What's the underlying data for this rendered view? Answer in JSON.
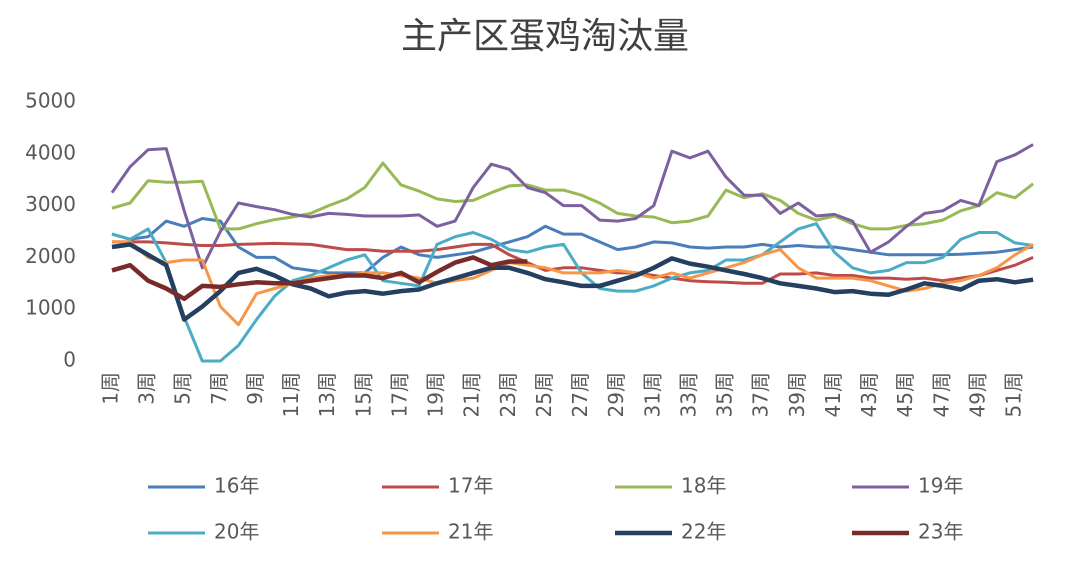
{
  "chart_data": {
    "type": "line",
    "title": "主产区蛋鸡淘汰量",
    "categories": [
      "1周",
      null,
      "3周",
      null,
      "5周",
      null,
      "7周",
      null,
      "9周",
      null,
      "11周",
      null,
      "13周",
      null,
      "15周",
      null,
      "17周",
      null,
      "19周",
      null,
      "21周",
      null,
      "23周",
      null,
      "25周",
      null,
      "27周",
      null,
      "29周",
      null,
      "31周",
      null,
      "33周",
      null,
      "35周",
      null,
      "37周",
      null,
      "39周",
      null,
      "41周",
      null,
      "43周",
      null,
      "45周",
      null,
      "47周",
      null,
      "49周",
      null,
      "51周",
      null
    ],
    "ylim": [
      0,
      5000
    ],
    "yticks": [
      0,
      1000,
      2000,
      3000,
      4000,
      5000
    ],
    "grid": false,
    "series": [
      {
        "name": "16年",
        "color": "#4a7ebb",
        "values": [
          2450,
          2350,
          2400,
          2700,
          2600,
          2750,
          2700,
          2200,
          2000,
          2000,
          1800,
          1750,
          1700,
          1700,
          1700,
          2000,
          2200,
          2050,
          2000,
          2050,
          2100,
          2200,
          2300,
          2400,
          2600,
          2450,
          2450,
          2300,
          2150,
          2200,
          2300,
          2280,
          2200,
          2180,
          2200,
          2200,
          2250,
          2200,
          2230,
          2200,
          2200,
          2150,
          2100,
          2050,
          2050,
          2050,
          2050,
          2060,
          2080,
          2100,
          2150,
          2200
        ]
      },
      {
        "name": "17年",
        "color": "#be4b48",
        "values": [
          2300,
          2300,
          2300,
          2280,
          2250,
          2230,
          2230,
          2250,
          2260,
          2270,
          2260,
          2250,
          2200,
          2150,
          2150,
          2120,
          2120,
          2120,
          2150,
          2200,
          2250,
          2250,
          2050,
          1900,
          1750,
          1800,
          1800,
          1750,
          1700,
          1700,
          1650,
          1600,
          1550,
          1530,
          1520,
          1500,
          1500,
          1680,
          1680,
          1700,
          1650,
          1650,
          1600,
          1600,
          1580,
          1600,
          1550,
          1600,
          1650,
          1750,
          1850,
          2000
        ]
      },
      {
        "name": "18年",
        "color": "#98b954",
        "values": [
          2950,
          3050,
          3480,
          3450,
          3450,
          3470,
          2550,
          2550,
          2650,
          2730,
          2780,
          2850,
          3000,
          3130,
          3350,
          3820,
          3400,
          3280,
          3130,
          3080,
          3100,
          3250,
          3380,
          3400,
          3300,
          3300,
          3200,
          3050,
          2850,
          2800,
          2780,
          2670,
          2700,
          2800,
          3300,
          3150,
          3230,
          3100,
          2850,
          2720,
          2800,
          2650,
          2550,
          2550,
          2620,
          2650,
          2720,
          2900,
          3000,
          3250,
          3150,
          3420
        ]
      },
      {
        "name": "19年",
        "color": "#7d60a0",
        "values": [
          3250,
          3750,
          4080,
          4100,
          2900,
          1800,
          2500,
          3050,
          2980,
          2920,
          2830,
          2780,
          2850,
          2830,
          2800,
          2800,
          2800,
          2820,
          2600,
          2700,
          3350,
          3800,
          3700,
          3350,
          3250,
          3000,
          3000,
          2720,
          2700,
          2750,
          3000,
          4050,
          3920,
          4050,
          3550,
          3200,
          3200,
          2850,
          3050,
          2800,
          2830,
          2700,
          2100,
          2300,
          2600,
          2850,
          2900,
          3100,
          3000,
          3850,
          3980,
          4180
        ]
      },
      {
        "name": "20年",
        "color": "#4bacc6",
        "values": [
          2450,
          2350,
          2550,
          1900,
          850,
          0,
          0,
          300,
          800,
          1250,
          1550,
          1650,
          1800,
          1950,
          2050,
          1550,
          1500,
          1450,
          2250,
          2400,
          2480,
          2350,
          2150,
          2100,
          2200,
          2250,
          1700,
          1400,
          1350,
          1350,
          1450,
          1600,
          1700,
          1750,
          1950,
          1950,
          2050,
          2300,
          2550,
          2650,
          2100,
          1800,
          1700,
          1750,
          1900,
          1900,
          2000,
          2350,
          2480,
          2480,
          2280,
          2230
        ]
      },
      {
        "name": "21年",
        "color": "#f79646",
        "values": [
          2300,
          2300,
          2000,
          1900,
          1950,
          1950,
          1050,
          700,
          1300,
          1400,
          1500,
          1600,
          1650,
          1650,
          1700,
          1700,
          1650,
          1600,
          1500,
          1550,
          1600,
          1750,
          1900,
          1850,
          1800,
          1700,
          1700,
          1700,
          1750,
          1700,
          1600,
          1700,
          1600,
          1700,
          1800,
          1900,
          2050,
          2150,
          1800,
          1600,
          1600,
          1600,
          1550,
          1450,
          1350,
          1400,
          1500,
          1550,
          1650,
          1800,
          2050,
          2250
        ]
      },
      {
        "name": "22年",
        "color": "#243f60",
        "values": [
          2200,
          2250,
          2050,
          1850,
          800,
          1050,
          1350,
          1700,
          1780,
          1650,
          1480,
          1400,
          1250,
          1320,
          1350,
          1300,
          1350,
          1380,
          1500,
          1600,
          1700,
          1800,
          1800,
          1700,
          1580,
          1520,
          1450,
          1450,
          1550,
          1650,
          1800,
          1980,
          1880,
          1820,
          1750,
          1680,
          1600,
          1500,
          1450,
          1400,
          1330,
          1350,
          1300,
          1280,
          1380,
          1500,
          1450,
          1380,
          1550,
          1580,
          1520,
          1570
        ]
      },
      {
        "name": "23年",
        "color": "#772c2a",
        "values": [
          1750,
          1850,
          1550,
          1400,
          1200,
          1450,
          1430,
          1480,
          1520,
          1500,
          1500,
          1550,
          1600,
          1650,
          1650,
          1600,
          1700,
          1520,
          1720,
          1900,
          2000,
          1850,
          1920,
          1920,
          null,
          null,
          null,
          null,
          null,
          null,
          null,
          null,
          null,
          null,
          null,
          null,
          null,
          null,
          null,
          null,
          null,
          null,
          null,
          null,
          null,
          null,
          null,
          null,
          null,
          null,
          null,
          null
        ]
      }
    ]
  }
}
